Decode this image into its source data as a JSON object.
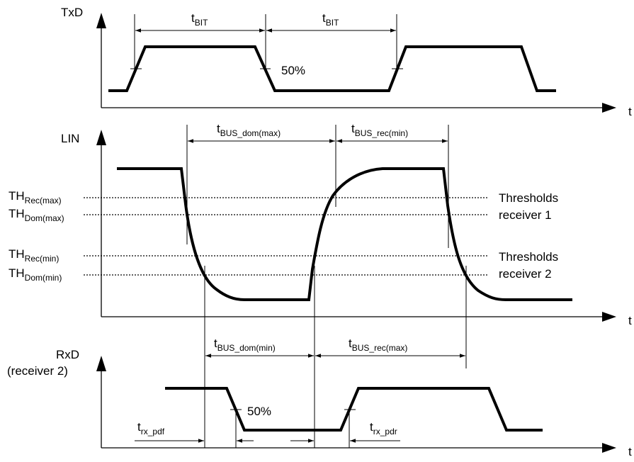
{
  "signals": {
    "txd": "TxD",
    "lin": "LIN",
    "rxd_line1": "RxD",
    "rxd_line2": "(receiver 2)"
  },
  "axis_label": "t",
  "percent_label": "50%",
  "timing": {
    "tbit_main": "t",
    "tbit_sub": "BIT",
    "bus_dom_max_main": "t",
    "bus_dom_max_sub": "BUS_dom(max)",
    "bus_rec_min_main": "t",
    "bus_rec_min_sub": "BUS_rec(min)",
    "bus_dom_min_main": "t",
    "bus_dom_min_sub": "BUS_dom(min)",
    "bus_rec_max_main": "t",
    "bus_rec_max_sub": "BUS_rec(max)",
    "rx_pdf_main": "t",
    "rx_pdf_sub": "rx_pdf",
    "rx_pdr_main": "t",
    "rx_pdr_sub": "rx_pdr"
  },
  "thresholds": {
    "th_main": "TH",
    "rec_max_sub": "Rec(max)",
    "dom_max_sub": "Dom(max)",
    "rec_min_sub": "Rec(min)",
    "dom_min_sub": "Dom(min)",
    "group_word": "Thresholds",
    "receiver1": "receiver 1",
    "receiver2": "receiver 2"
  }
}
